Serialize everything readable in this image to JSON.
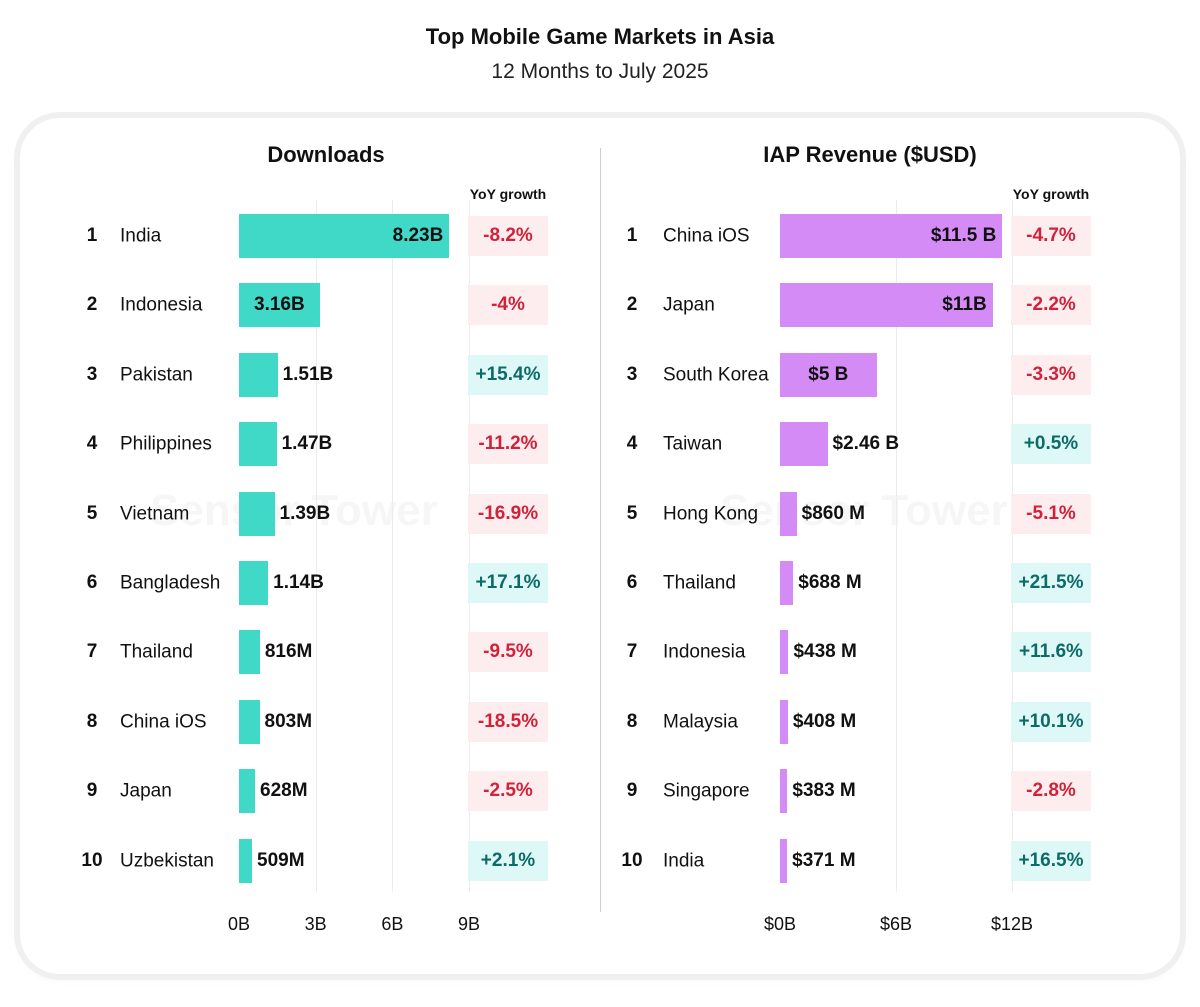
{
  "chart_data": [
    {
      "type": "bar",
      "orientation": "horizontal",
      "title": "Downloads",
      "categories": [
        "India",
        "Indonesia",
        "Pakistan",
        "Philippines",
        "Vietnam",
        "Bangladesh",
        "Thailand",
        "China iOS",
        "Japan",
        "Uzbekistan"
      ],
      "ranks": [
        "1",
        "2",
        "3",
        "4",
        "5",
        "6",
        "7",
        "8",
        "9",
        "10"
      ],
      "values": [
        8.23,
        3.16,
        1.51,
        1.47,
        1.39,
        1.14,
        0.816,
        0.803,
        0.628,
        0.509
      ],
      "value_labels": [
        "8.23B",
        "3.16B",
        "1.51B",
        "1.47B",
        "1.39B",
        "1.14B",
        "816M",
        "803M",
        "628M",
        "509M"
      ],
      "growth_header": "YoY  growth",
      "growth": [
        "-8.2%",
        "-4%",
        "+15.4%",
        "-11.2%",
        "-16.9%",
        "+17.1%",
        "-9.5%",
        "-18.5%",
        "-2.5%",
        "+2.1%"
      ],
      "xlim": [
        0,
        9
      ],
      "ticks": [
        0,
        3,
        6,
        9
      ],
      "tick_labels": [
        "0B",
        "3B",
        "6B",
        "9B"
      ],
      "unit": "billions of downloads",
      "bar_color": "#40D9C8",
      "grid": true
    },
    {
      "type": "bar",
      "orientation": "horizontal",
      "title": "IAP Revenue ($USD)",
      "categories": [
        "China iOS",
        "Japan",
        "South Korea",
        "Taiwan",
        "Hong Kong",
        "Thailand",
        "Indonesia",
        "Malaysia",
        "Singapore",
        "India"
      ],
      "ranks": [
        "1",
        "2",
        "3",
        "4",
        "5",
        "6",
        "7",
        "8",
        "9",
        "10"
      ],
      "values": [
        11.5,
        11,
        5,
        2.46,
        0.86,
        0.688,
        0.438,
        0.408,
        0.383,
        0.371
      ],
      "value_labels": [
        "$11.5 B",
        "$11B",
        "$5 B",
        "$2.46 B",
        "$860 M",
        "$688 M",
        "$438 M",
        "$408 M",
        "$383 M",
        "$371 M"
      ],
      "growth_header": "YoY  growth",
      "growth": [
        "-4.7%",
        "-2.2%",
        "-3.3%",
        "+0.5%",
        "-5.1%",
        "+21.5%",
        "+11.6%",
        "+10.1%",
        "-2.8%",
        "+16.5%"
      ],
      "xlim": [
        0,
        12
      ],
      "ticks": [
        0,
        6,
        12
      ],
      "tick_labels": [
        "$0B",
        "$6B",
        "$12B"
      ],
      "unit": "billions USD",
      "bar_color": "#D48BF5",
      "grid": true
    }
  ],
  "header": {
    "title": "Top Mobile Game Markets in Asia",
    "subtitle": "12 Months to July 2025"
  },
  "watermark": "Sensor Tower",
  "colors": {
    "negative_text": "#D0223A",
    "negative_bg": "#FDEDEE",
    "positive_text": "#0D6B67",
    "positive_bg": "#DDF8F7"
  }
}
